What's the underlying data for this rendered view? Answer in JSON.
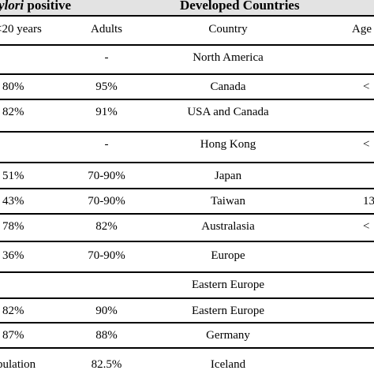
{
  "header": {
    "left_italic": "ylori",
    "left_rest": " positive",
    "right": "Developed Countries"
  },
  "columns": [
    "<20 years",
    "Adults",
    "Country",
    "Age"
  ],
  "rows": [
    {
      "c1": "",
      "c2": "-",
      "c3": "North America",
      "c4": ""
    },
    {
      "c1": "80%",
      "c2": "95%",
      "c3": "Canada",
      "c4": "<"
    },
    {
      "c1": "82%",
      "c2": "91%",
      "c3": "USA and Canada",
      "c4": ""
    },
    {
      "c1": "",
      "c2": "-",
      "c3": "Hong Kong",
      "c4": "<"
    },
    {
      "c1": "51%",
      "c2": "70-90%",
      "c3": "Japan",
      "c4": ""
    },
    {
      "c1": "43%",
      "c2": "70-90%",
      "c3": "Taiwan",
      "c4": "13"
    },
    {
      "c1": "78%",
      "c2": "82%",
      "c3": "Australasia",
      "c4": "<"
    },
    {
      "c1": "36%",
      "c2": "70-90%",
      "c3": "Europe",
      "c4": ""
    },
    {
      "c1": "",
      "c2": "",
      "c3": "Eastern Europe",
      "c4": ""
    },
    {
      "c1": "82%",
      "c2": "90%",
      "c3": "Eastern Europe",
      "c4": ""
    },
    {
      "c1": "87%",
      "c2": "88%",
      "c3": "Germany",
      "c4": ""
    },
    {
      "c1": "pulation",
      "c2": "82.5%",
      "c3": "Iceland",
      "c4": ""
    }
  ]
}
